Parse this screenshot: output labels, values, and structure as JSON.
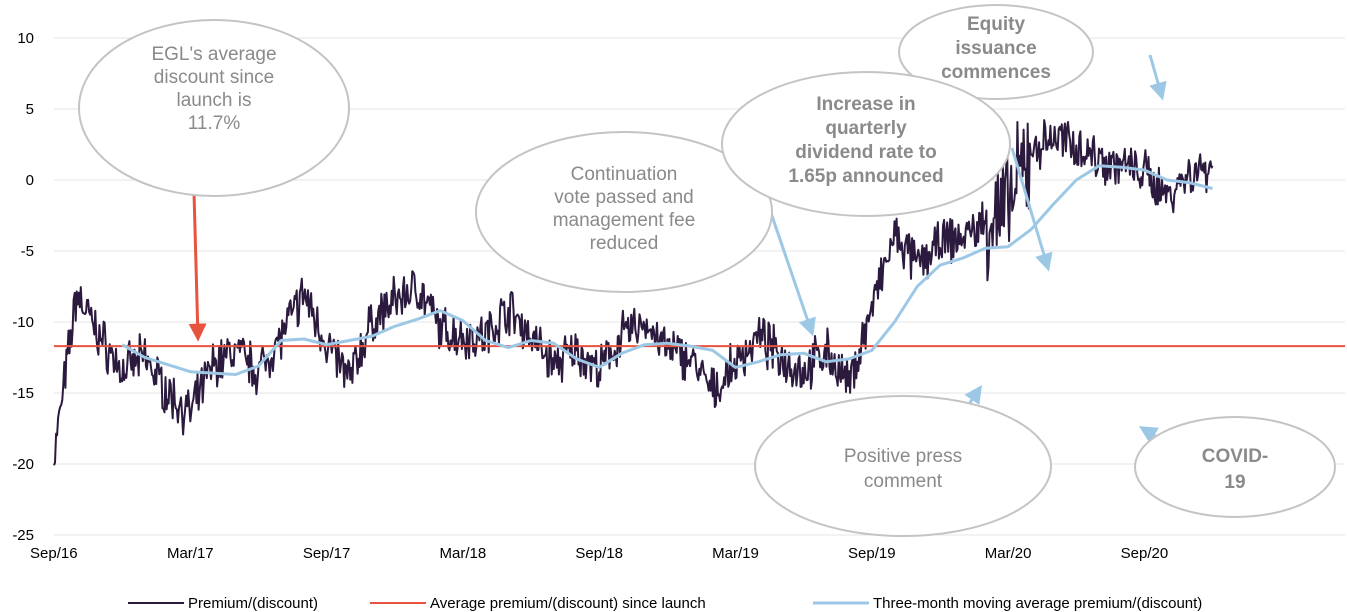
{
  "chart_data": {
    "type": "line",
    "title": "",
    "xlabel": "",
    "ylabel": "",
    "ylim": [
      -25,
      10
    ],
    "yticks": [
      10,
      5,
      0,
      -5,
      -10,
      -15,
      -20,
      -25
    ],
    "x_tick_labels": [
      "Sep/16",
      "Mar/17",
      "Sep/17",
      "Mar/18",
      "Sep/18",
      "Mar/19",
      "Sep/19",
      "Mar/20",
      "Sep/20"
    ],
    "grid": "horizontal",
    "legend_position": "bottom",
    "series": [
      {
        "name": "Premium/(discount)",
        "color": "#2b1a3d",
        "x": [
          "Sep/16",
          "Oct/16",
          "Nov/16",
          "Dec/16",
          "Jan/17",
          "Feb/17",
          "Mar/17",
          "Apr/17",
          "May/17",
          "Jun/17",
          "Jul/17",
          "Aug/17",
          "Sep/17",
          "Oct/17",
          "Nov/17",
          "Dec/17",
          "Jan/18",
          "Feb/18",
          "Mar/18",
          "Apr/18",
          "May/18",
          "Jun/18",
          "Jul/18",
          "Aug/18",
          "Sep/18",
          "Oct/18",
          "Nov/18",
          "Dec/18",
          "Jan/19",
          "Feb/19",
          "Mar/19",
          "Apr/19",
          "May/19",
          "Jun/19",
          "Jul/19",
          "Aug/19",
          "Sep/19",
          "Oct/19",
          "Nov/19",
          "Dec/19",
          "Jan/20",
          "Feb/20",
          "Mar/20",
          "Apr/20",
          "May/20",
          "Jun/20",
          "Jul/20",
          "Aug/20",
          "Sep/20",
          "Oct/20",
          "Nov/20",
          "Dec/20"
        ],
        "values": [
          -19.5,
          -8,
          -11,
          -13.5,
          -12.5,
          -15,
          -16.5,
          -13,
          -12,
          -13.5,
          -11,
          -8,
          -11.5,
          -14,
          -10,
          -8.5,
          -7.5,
          -10.5,
          -11,
          -11,
          -9,
          -11,
          -13,
          -12,
          -13.5,
          -11,
          -10,
          -12,
          -12.5,
          -15,
          -13,
          -11,
          -12.5,
          -13.5,
          -12,
          -14.5,
          -9,
          -4,
          -6,
          -4.5,
          -4,
          -3,
          -2,
          2,
          3,
          2.5,
          1.5,
          1,
          0.5,
          -1,
          0.5,
          1
        ]
      },
      {
        "name": "Average premium/(discount) since launch",
        "color": "#e8533f",
        "constant": -11.7
      },
      {
        "name": "Three-month moving average premium/(discount)",
        "color": "#9dc8e5",
        "x": [
          "Dec/16",
          "Jan/17",
          "Feb/17",
          "Mar/17",
          "Apr/17",
          "May/17",
          "Jun/17",
          "Jul/17",
          "Aug/17",
          "Sep/17",
          "Oct/17",
          "Nov/17",
          "Dec/17",
          "Jan/18",
          "Feb/18",
          "Mar/18",
          "Apr/18",
          "May/18",
          "Jun/18",
          "Jul/18",
          "Aug/18",
          "Sep/18",
          "Oct/18",
          "Nov/18",
          "Dec/18",
          "Jan/19",
          "Feb/19",
          "Mar/19",
          "Apr/19",
          "May/19",
          "Jun/19",
          "Jul/19",
          "Aug/19",
          "Sep/19",
          "Oct/19",
          "Nov/19",
          "Dec/19",
          "Jan/20",
          "Feb/20",
          "Mar/20",
          "Apr/20",
          "May/20",
          "Jun/20",
          "Jul/20",
          "Aug/20",
          "Sep/20",
          "Oct/20",
          "Nov/20",
          "Dec/20"
        ],
        "values": [
          -11.6,
          -12.5,
          -13.0,
          -13.5,
          -13.6,
          -13.7,
          -13.1,
          -11.3,
          -11.2,
          -11.6,
          -11.3,
          -11.0,
          -10.3,
          -9.8,
          -9.2,
          -9.9,
          -11.3,
          -11.8,
          -11.3,
          -11.5,
          -12.6,
          -13.2,
          -12.2,
          -11.6,
          -11.5,
          -11.7,
          -12.0,
          -13.2,
          -12.8,
          -12.3,
          -12.2,
          -12.8,
          -12.6,
          -12.0,
          -10.0,
          -7.5,
          -6.0,
          -5.5,
          -4.8,
          -4.7,
          -3.5,
          -1.7,
          0,
          1.0,
          0.9,
          0.7,
          0,
          -0.2,
          -0.6
        ]
      }
    ],
    "annotations": [
      {
        "text_lines": [
          "EGL's average",
          "discount since",
          "launch is",
          "11.7%"
        ],
        "bold": false
      },
      {
        "text_lines": [
          "Continuation",
          "vote passed and",
          "management fee",
          "reduced"
        ],
        "bold": false
      },
      {
        "text_lines": [
          "Equity",
          "issuance",
          "commences"
        ],
        "bold": true
      },
      {
        "text_lines": [
          "Increase in",
          "quarterly",
          "dividend rate to",
          "1.65p announced"
        ],
        "bold": true
      },
      {
        "text_lines": [
          "Positive press",
          "comment"
        ],
        "bold": false
      },
      {
        "text_lines": [
          "COVID-",
          "19"
        ],
        "bold": true
      }
    ],
    "colors": {
      "annotation_text": "#8a8a8a",
      "bubble_fill": "#ffffff",
      "bubble_stroke": "#c4c4c4",
      "arrow_blue": "#9dc8e5",
      "arrow_red": "#e8533f",
      "grid": "#e6e6e6"
    }
  }
}
